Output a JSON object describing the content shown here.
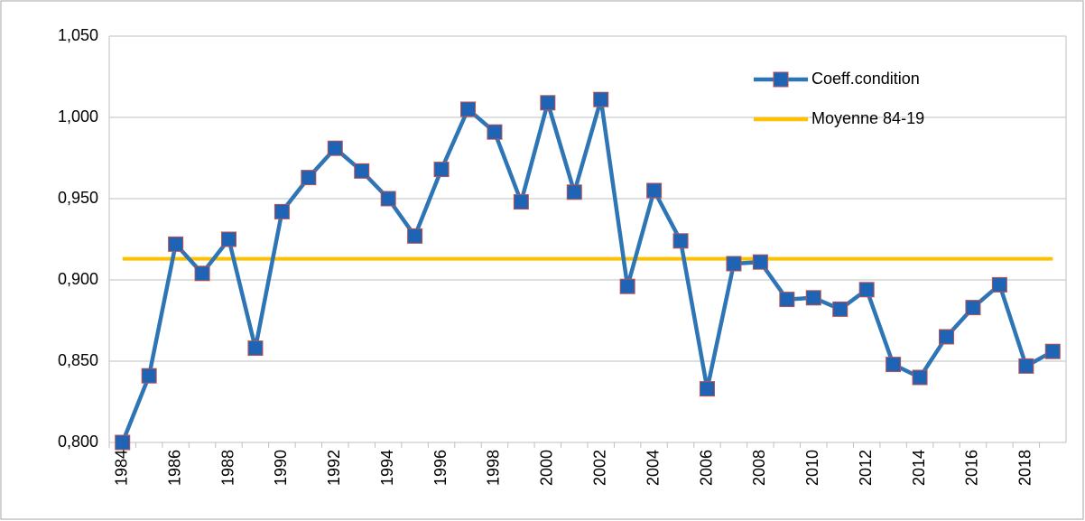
{
  "chart_data": {
    "type": "line",
    "categories": [
      "1984",
      null,
      "1986",
      null,
      "1988",
      null,
      "1990",
      null,
      "1992",
      null,
      "1994",
      null,
      "1996",
      null,
      "1998",
      null,
      "2000",
      null,
      "2002",
      null,
      "2004",
      null,
      "2006",
      null,
      "2008",
      null,
      "2010",
      null,
      "2012",
      null,
      "2014",
      null,
      "2016",
      null,
      "2018",
      null
    ],
    "series": [
      {
        "name": "Coeff.condition",
        "color": "#2e75b6",
        "marker_color": "#1f64b4",
        "marker_edge": "#c0504d",
        "values": [
          0.8,
          0.841,
          0.922,
          0.904,
          0.925,
          0.858,
          0.942,
          0.963,
          0.981,
          0.967,
          0.95,
          0.927,
          0.968,
          1.005,
          0.991,
          0.948,
          1.009,
          0.954,
          1.011,
          0.896,
          0.955,
          0.924,
          0.833,
          0.91,
          0.911,
          0.888,
          0.889,
          0.882,
          0.894,
          0.848,
          0.84,
          0.865,
          0.883,
          0.897,
          0.847,
          0.856
        ]
      },
      {
        "name": "Moyenne 84-19",
        "color": "#ffc000",
        "values": [
          0.913,
          0.913,
          0.913,
          0.913,
          0.913,
          0.913,
          0.913,
          0.913,
          0.913,
          0.913,
          0.913,
          0.913,
          0.913,
          0.913,
          0.913,
          0.913,
          0.913,
          0.913,
          0.913,
          0.913,
          0.913,
          0.913,
          0.913,
          0.913,
          0.913,
          0.913,
          0.913,
          0.913,
          0.913,
          0.913,
          0.913,
          0.913,
          0.913,
          0.913,
          0.913,
          0.913
        ]
      }
    ],
    "ylim": [
      0.8,
      1.05
    ],
    "yticks": [
      {
        "value": 0.8,
        "label": "0,800"
      },
      {
        "value": 0.85,
        "label": "0,850"
      },
      {
        "value": 0.9,
        "label": "0,900"
      },
      {
        "value": 0.95,
        "label": "0,950"
      },
      {
        "value": 1.0,
        "label": "1,000"
      },
      {
        "value": 1.05,
        "label": "1,050"
      }
    ],
    "grid": true,
    "legend": "upper right"
  }
}
